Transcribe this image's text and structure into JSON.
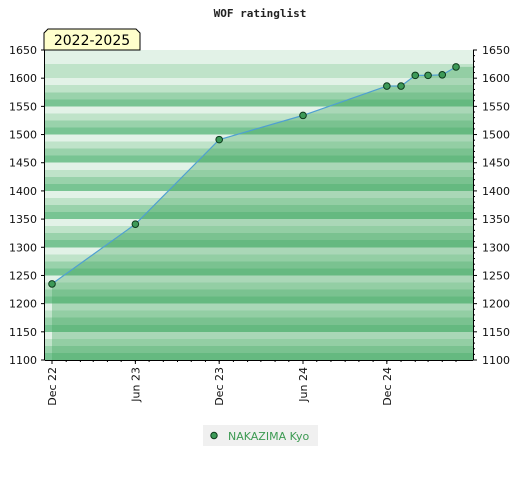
{
  "chart_data": {
    "type": "area",
    "title": "WOF ratinglist",
    "period_label": "2022-2025",
    "xlabel": "",
    "ylabel": "",
    "x_tick_labels": [
      "Dec 22",
      "Jun 23",
      "Dec 23",
      "Jun 24",
      "Dec 24"
    ],
    "x_tick_dates": [
      "2022-12-01",
      "2023-06-01",
      "2023-12-01",
      "2024-06-01",
      "2024-12-01"
    ],
    "xlim": [
      "2022-12-01",
      "2025-05-25"
    ],
    "ylim": [
      1100,
      1650
    ],
    "y_ticks": [
      1100,
      1150,
      1200,
      1250,
      1300,
      1350,
      1400,
      1450,
      1500,
      1550,
      1600,
      1650
    ],
    "grid": false,
    "legend_position": "bottom-center",
    "series": [
      {
        "name": "NAKAZIMA Kyo",
        "x": [
          "2022-12-01",
          "2023-06-01",
          "2023-12-01",
          "2024-06-01",
          "2024-12-01",
          "2025-01-01",
          "2025-02-01",
          "2025-03-01",
          "2025-04-01",
          "2025-05-01"
        ],
        "values": [
          1235,
          1341,
          1491,
          1534,
          1586,
          1586,
          1605,
          1605,
          1606,
          1620
        ]
      }
    ]
  },
  "colors": {
    "band_dark": "#78c493",
    "band_mid": "#99d2ab",
    "band_light": "#bfe3c9",
    "band_pale": "#e2f2e7",
    "area_fill": "#41a55e",
    "line": "#4f9fd2",
    "marker_fill": "#3d9a58",
    "marker_stroke": "#0d3b1c",
    "badge_fill": "#ffffcc",
    "legend_bg": "#f0f0f0",
    "legend_text": "#3c9a52"
  }
}
